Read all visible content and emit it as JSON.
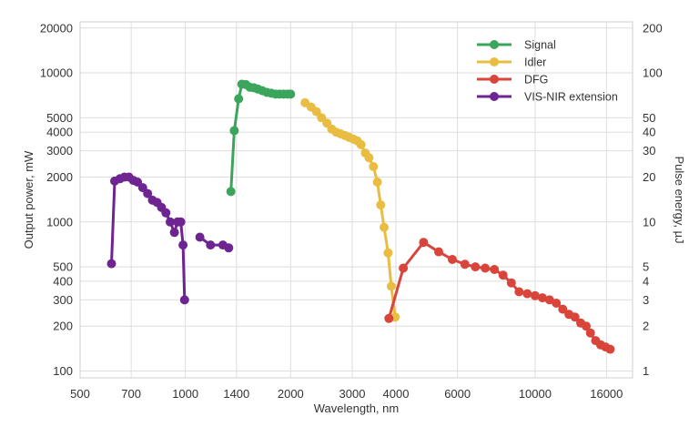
{
  "chart_data": {
    "type": "line",
    "xlabel": "Wavelength, nm",
    "ylabel": "Output power, mW",
    "ylabel_right": "Pulse energy, µJ",
    "x_scale": "log",
    "y_scale": "log",
    "xlim": [
      500,
      19000
    ],
    "ylim": [
      90,
      22000
    ],
    "right_axis_factor": 0.01,
    "x_ticks": [
      {
        "value": 500,
        "label": "500"
      },
      {
        "value": 700,
        "label": "700"
      },
      {
        "value": 1000,
        "label": "1000"
      },
      {
        "value": 1400,
        "label": "1400"
      },
      {
        "value": 2000,
        "label": "2000"
      },
      {
        "value": 3000,
        "label": "3000"
      },
      {
        "value": 4000,
        "label": "4000"
      },
      {
        "value": 6000,
        "label": "6000"
      },
      {
        "value": 10000,
        "label": "10000"
      },
      {
        "value": 16000,
        "label": "16000"
      }
    ],
    "y_ticks": [
      {
        "value": 100,
        "label": "100"
      },
      {
        "value": 200,
        "label": "200"
      },
      {
        "value": 300,
        "label": "300"
      },
      {
        "value": 400,
        "label": "400"
      },
      {
        "value": 500,
        "label": "500"
      },
      {
        "value": 1000,
        "label": "1000"
      },
      {
        "value": 2000,
        "label": "2000"
      },
      {
        "value": 3000,
        "label": "3000"
      },
      {
        "value": 4000,
        "label": "4000"
      },
      {
        "value": 5000,
        "label": "5000"
      },
      {
        "value": 10000,
        "label": "10000"
      },
      {
        "value": 20000,
        "label": "20000"
      }
    ],
    "y_ticks_right": [
      {
        "value": 100,
        "label": "1"
      },
      {
        "value": 200,
        "label": "2"
      },
      {
        "value": 300,
        "label": "3"
      },
      {
        "value": 400,
        "label": "4"
      },
      {
        "value": 500,
        "label": "5"
      },
      {
        "value": 1000,
        "label": "10"
      },
      {
        "value": 2000,
        "label": "20"
      },
      {
        "value": 3000,
        "label": "30"
      },
      {
        "value": 4000,
        "label": "40"
      },
      {
        "value": 5000,
        "label": "50"
      },
      {
        "value": 10000,
        "label": "100"
      },
      {
        "value": 20000,
        "label": "200"
      }
    ],
    "grid": true,
    "legend_position": "top-right",
    "series": [
      {
        "name": "Signal",
        "color": "#3ba55c",
        "segments": [
          [
            [
              1350,
              1600
            ],
            [
              1380,
              4100
            ],
            [
              1420,
              6700
            ],
            [
              1450,
              8400
            ],
            [
              1490,
              8350
            ],
            [
              1530,
              8000
            ],
            [
              1570,
              7950
            ],
            [
              1610,
              7800
            ],
            [
              1660,
              7600
            ],
            [
              1710,
              7400
            ],
            [
              1760,
              7300
            ],
            [
              1810,
              7200
            ],
            [
              1860,
              7200
            ],
            [
              1910,
              7200
            ],
            [
              1960,
              7200
            ],
            [
              2000,
              7200
            ]
          ]
        ]
      },
      {
        "name": "Idler",
        "color": "#e9bd41",
        "segments": [
          [
            [
              2200,
              6300
            ],
            [
              2290,
              5900
            ],
            [
              2370,
              5500
            ],
            [
              2450,
              5000
            ],
            [
              2540,
              4600
            ],
            [
              2620,
              4200
            ],
            [
              2700,
              4000
            ],
            [
              2780,
              3900
            ],
            [
              2860,
              3800
            ],
            [
              2940,
              3700
            ],
            [
              3020,
              3600
            ],
            [
              3100,
              3500
            ],
            [
              3180,
              3300
            ],
            [
              3270,
              2900
            ],
            [
              3350,
              2700
            ],
            [
              3450,
              2350
            ],
            [
              3540,
              1850
            ],
            [
              3620,
              1300
            ],
            [
              3700,
              920
            ],
            [
              3800,
              620
            ],
            [
              3880,
              370
            ],
            [
              3980,
              230
            ]
          ]
        ]
      },
      {
        "name": "DFG",
        "color": "#d9453b",
        "segments": [
          [
            [
              3820,
              225
            ],
            [
              4200,
              490
            ],
            [
              4800,
              730
            ],
            [
              5300,
              630
            ],
            [
              5800,
              560
            ],
            [
              6300,
              520
            ],
            [
              6750,
              500
            ],
            [
              7200,
              490
            ],
            [
              7650,
              480
            ],
            [
              8100,
              440
            ],
            [
              8550,
              390
            ],
            [
              9000,
              340
            ],
            [
              9500,
              330
            ],
            [
              10000,
              320
            ],
            [
              10500,
              310
            ],
            [
              11000,
              300
            ],
            [
              11500,
              285
            ],
            [
              12000,
              260
            ],
            [
              12500,
              240
            ],
            [
              13000,
              230
            ],
            [
              13500,
              210
            ],
            [
              14000,
              200
            ],
            [
              14400,
              180
            ],
            [
              14900,
              160
            ],
            [
              15400,
              150
            ],
            [
              15900,
              145
            ],
            [
              16400,
              140
            ]
          ]
        ]
      },
      {
        "name": "VIS-NIR extension",
        "color": "#6e2491",
        "segments": [
          [
            [
              615,
              525
            ],
            [
              628,
              1880
            ],
            [
              650,
              1950
            ],
            [
              670,
              2000
            ],
            [
              690,
              2000
            ],
            [
              710,
              1900
            ],
            [
              730,
              1850
            ],
            [
              755,
              1700
            ],
            [
              780,
              1550
            ],
            [
              805,
              1400
            ],
            [
              830,
              1350
            ],
            [
              855,
              1250
            ],
            [
              880,
              1150
            ],
            [
              905,
              1000
            ],
            [
              930,
              850
            ],
            [
              950,
              1000
            ],
            [
              970,
              1000
            ],
            [
              985,
              700
            ],
            [
              995,
              300
            ]
          ],
          [
            [
              1100,
              790
            ],
            [
              1180,
              700
            ],
            [
              1280,
              700
            ],
            [
              1330,
              670
            ]
          ]
        ]
      }
    ]
  }
}
